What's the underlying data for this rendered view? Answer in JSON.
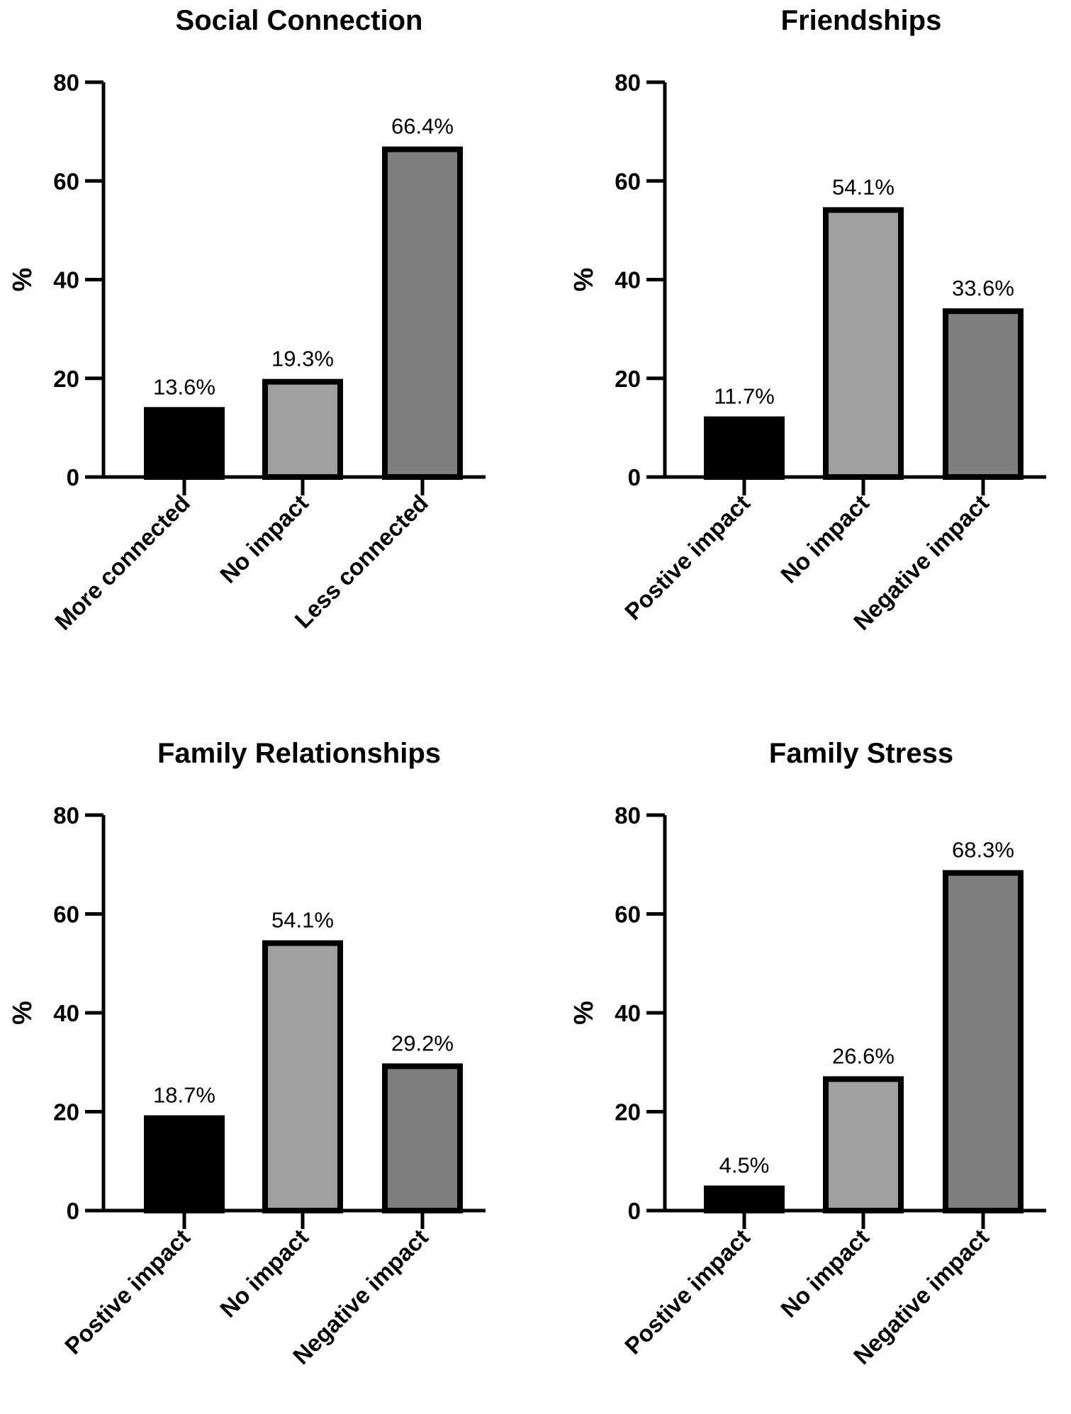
{
  "chart_data": [
    {
      "type": "bar",
      "title": "Social Connection",
      "ylabel": "%",
      "xlabel": "",
      "ylim": [
        0,
        80
      ],
      "yticks": [
        0,
        20,
        40,
        60,
        80
      ],
      "categories": [
        "More connected",
        "No impact",
        "Less connected"
      ],
      "values": [
        13.6,
        19.3,
        66.4
      ],
      "data_labels": [
        "13.6%",
        "19.3%",
        "66.4%"
      ],
      "colors": [
        "#000000",
        "#a0a0a0",
        "#7f7f7f"
      ],
      "grid": false,
      "legend": "none"
    },
    {
      "type": "bar",
      "title": "Friendships",
      "ylabel": "%",
      "xlabel": "",
      "ylim": [
        0,
        80
      ],
      "yticks": [
        0,
        20,
        40,
        60,
        80
      ],
      "categories": [
        "Postive impact",
        "No impact",
        "Negative impact"
      ],
      "values": [
        11.7,
        54.1,
        33.6
      ],
      "data_labels": [
        "11.7%",
        "54.1%",
        "33.6%"
      ],
      "colors": [
        "#000000",
        "#a0a0a0",
        "#7f7f7f"
      ],
      "grid": false,
      "legend": "none"
    },
    {
      "type": "bar",
      "title": "Family Relationships",
      "ylabel": "%",
      "xlabel": "",
      "ylim": [
        0,
        80
      ],
      "yticks": [
        0,
        20,
        40,
        60,
        80
      ],
      "categories": [
        "Postive impact",
        "No impact",
        "Negative impact"
      ],
      "values": [
        18.7,
        54.1,
        29.2
      ],
      "data_labels": [
        "18.7%",
        "54.1%",
        "29.2%"
      ],
      "colors": [
        "#000000",
        "#a0a0a0",
        "#7f7f7f"
      ],
      "grid": false,
      "legend": "none"
    },
    {
      "type": "bar",
      "title": "Family Stress",
      "ylabel": "%",
      "xlabel": "",
      "ylim": [
        0,
        80
      ],
      "yticks": [
        0,
        20,
        40,
        60,
        80
      ],
      "categories": [
        "Postive impact",
        "No impact",
        "Negative impact"
      ],
      "values": [
        4.5,
        26.6,
        68.3
      ],
      "data_labels": [
        "4.5%",
        "26.6%",
        "68.3%"
      ],
      "colors": [
        "#000000",
        "#a0a0a0",
        "#7f7f7f"
      ],
      "grid": false,
      "legend": "none"
    }
  ]
}
